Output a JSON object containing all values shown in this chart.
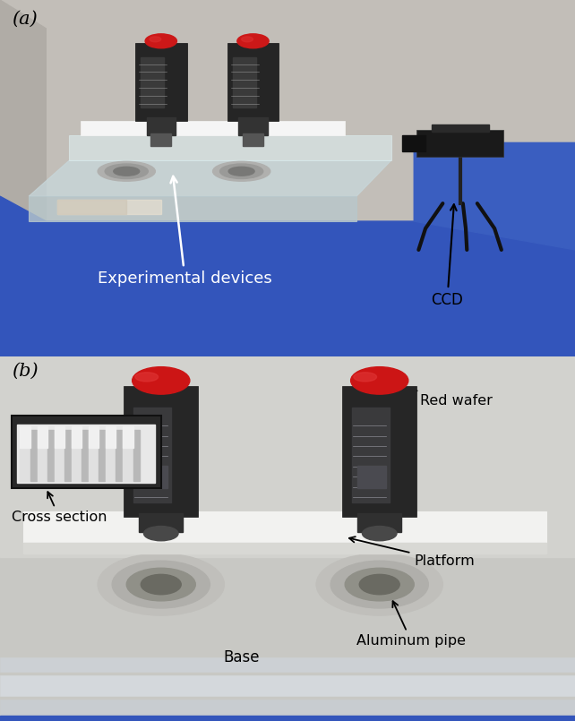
{
  "figsize": [
    6.42,
    8.05
  ],
  "dpi": 100,
  "panel_a": {
    "label": "(a)",
    "wall_color": "#c8c4be",
    "wall_color2": "#b8b5af",
    "floor_color": "#3355bb",
    "floor_color2": "#2244aa",
    "box_color": "#d0dde0",
    "platform_color": "#f0f0f0",
    "device_color": "#2a2a2a",
    "red_color": "#dd2020",
    "cam_color": "#1a1a1a",
    "annotation_exp_text": "Experimental devices",
    "annotation_exp_color": "white",
    "annotation_ccd_text": "CCD",
    "annotation_ccd_color": "black"
  },
  "panel_b": {
    "label": "(b)",
    "bg_color": "#c8c8c4",
    "bg_color2": "#d4d4d0",
    "platform_color": "#f0f0f0",
    "device_color": "#2a2a2a",
    "red_color": "#dd2020",
    "pipe_color": "#c0c0bc",
    "base_color": "#e0e0dc",
    "strip_color": "#d0d8dc",
    "annotation_cs_text": "Cross section",
    "annotation_rw_text": "Red wafer",
    "annotation_pl_text": "Platform",
    "annotation_bs_text": "Base",
    "annotation_ap_text": "Aluminum pipe"
  },
  "border_color": "#555555",
  "border_lw": 1.0
}
